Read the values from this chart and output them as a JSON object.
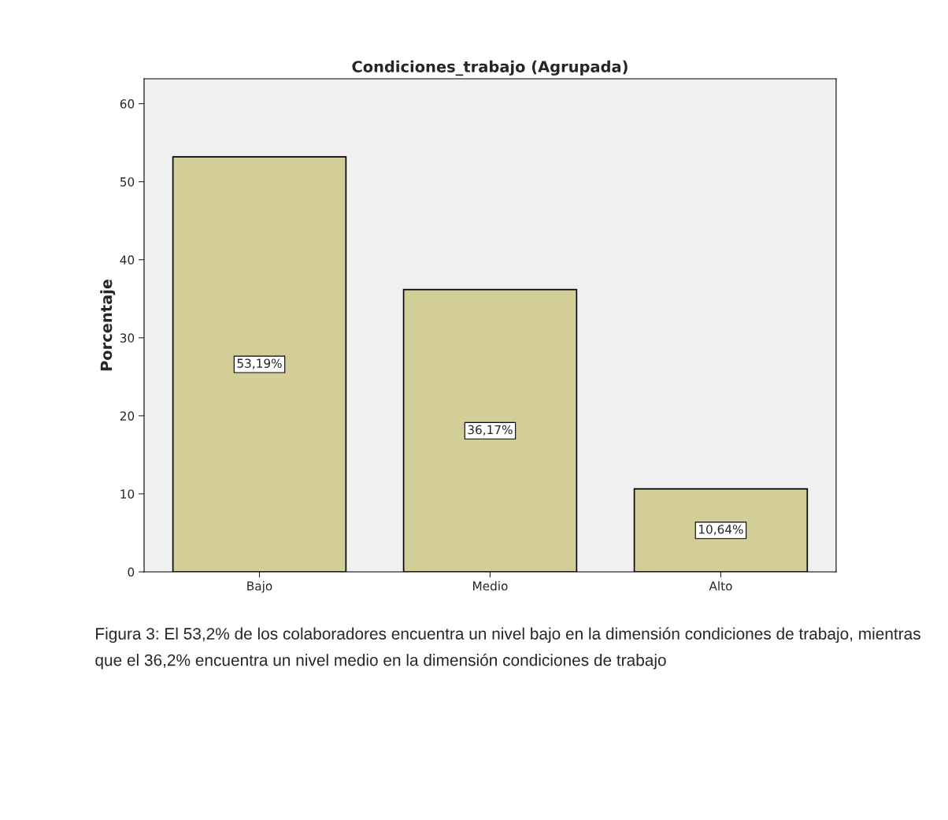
{
  "chart_data": {
    "type": "bar",
    "title": "Condiciones_trabajo (Agrupada)",
    "ylabel": "Porcentaje",
    "categories": [
      "Bajo",
      "Medio",
      "Alto"
    ],
    "values": [
      53.19,
      36.17,
      10.64
    ],
    "value_labels": [
      "53,19%",
      "36,17%",
      "10,64%"
    ],
    "color": "#d3ce98",
    "ylim": [
      0,
      63.2
    ],
    "yticks": [
      0,
      10,
      20,
      30,
      40,
      50,
      60
    ],
    "grid": false,
    "legend": false,
    "annotations": [
      "Figura 3: El 53,2% de los colaboradores encuentra un nivel bajo en la dimensión condiciones de trabajo, mientras que el 36,2% encuentra un nivel medio en la dimensión condiciones de trabajo"
    ]
  }
}
